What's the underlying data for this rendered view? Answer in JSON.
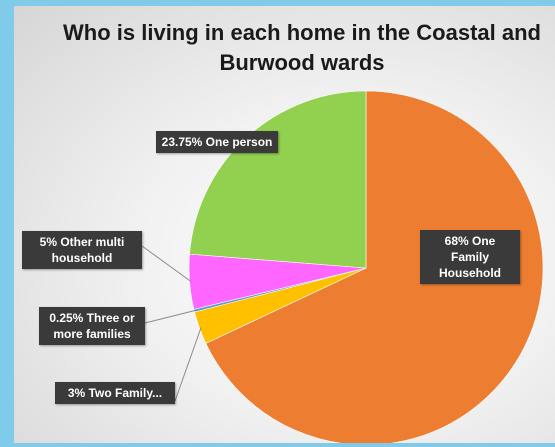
{
  "chart_data": {
    "type": "pie",
    "title": "Who is living in each home in the Coastal and Burwood wards",
    "title_lines": [
      "Who is living in each home in the Coastal and",
      "Burwood wards"
    ],
    "slices": [
      {
        "name": "One Family Household",
        "value": 68,
        "label": "68% One Family Household",
        "color": "#ed7d31"
      },
      {
        "name": "Two Family",
        "value": 3,
        "label": "3% Two Family...",
        "color": "#ffc000"
      },
      {
        "name": "Three or more families",
        "value": 0.25,
        "label": "0.25% Three or more families",
        "color": "#5b9bd5"
      },
      {
        "name": "Other multi household",
        "value": 5,
        "label": "5% Other multi household",
        "color": "#ff66ff"
      },
      {
        "name": "One person",
        "value": 23.75,
        "label": "23.75% One person",
        "color": "#92d050"
      }
    ]
  }
}
